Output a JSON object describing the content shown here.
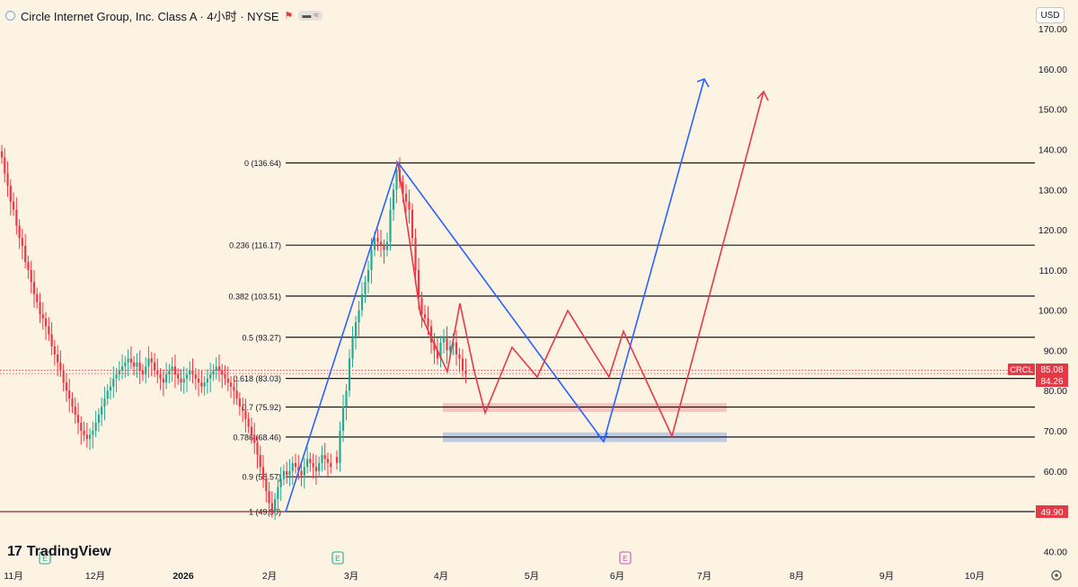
{
  "header": {
    "symbol_title": "Circle Internet Group, Inc. Class A · 4小时 · NYSE",
    "currency": "USD"
  },
  "brand": {
    "name": "TradingView",
    "logo_text": "17"
  },
  "chart_data": {
    "type": "candlestick",
    "symbol": "CRCL",
    "interval": "4小时",
    "exchange": "NYSE",
    "y_axis": {
      "ticks": [
        170,
        160,
        150,
        140,
        130,
        120,
        110,
        100,
        90,
        80,
        70,
        60,
        50,
        40
      ],
      "tick_labels": [
        "170.00",
        "160.00",
        "150.00",
        "140.00",
        "130.00",
        "120.00",
        "110.00",
        "100.00",
        "90.00",
        "80.00",
        "70.00",
        "60.00",
        "50.00",
        "40.00"
      ],
      "ylim": [
        37.5,
        172.5
      ]
    },
    "x_axis": {
      "labels": [
        "11月",
        "12月",
        "2026",
        "2月",
        "3月",
        "4月",
        "5月",
        "6月",
        "7月",
        "8月",
        "9月",
        "10月"
      ]
    },
    "price_labels": [
      {
        "text": "CRCL",
        "value": 85.08,
        "color": "#e53946"
      },
      {
        "text": "85.08",
        "value": 85.08,
        "color": "#e53946"
      },
      {
        "text": "84.26",
        "value": 84.26,
        "color": "#e53946"
      },
      {
        "text": "49.90",
        "value": 49.9,
        "color": "#e53946"
      }
    ],
    "fibonacci": [
      {
        "label": "0 (136.64)",
        "price": 136.64
      },
      {
        "label": "0.236 (116.17)",
        "price": 116.17
      },
      {
        "label": "0.382 (103.51)",
        "price": 103.51
      },
      {
        "label": "0.5 (93.27)",
        "price": 93.27
      },
      {
        "label": "0.618 (83.03)",
        "price": 83.03
      },
      {
        "label": "0.7 (75.92)",
        "price": 75.92
      },
      {
        "label": "0.786 (68.46)",
        "price": 68.46
      },
      {
        "label": "0.9 (58.57)",
        "price": 58.57
      },
      {
        "label": "1 (49.90)",
        "price": 49.9
      }
    ],
    "candles_close": [
      138,
      134,
      131,
      127,
      125,
      121,
      118,
      116,
      112,
      110,
      107,
      104,
      102,
      99,
      98,
      96,
      94,
      91,
      89,
      87,
      85,
      82,
      80,
      78,
      76,
      74,
      72,
      70,
      69,
      68,
      69,
      70,
      72,
      74,
      76,
      78,
      80,
      81,
      83,
      84,
      85,
      86,
      87,
      88,
      87,
      86,
      87,
      85,
      84,
      86,
      88,
      87,
      85,
      84,
      83,
      82,
      84,
      85,
      86,
      84,
      83,
      82,
      83,
      84,
      85,
      84,
      83,
      82,
      81,
      82,
      83,
      84,
      85,
      86,
      85,
      84,
      83,
      82,
      81,
      80,
      78,
      76,
      75,
      73,
      71,
      69,
      67,
      64,
      61,
      58,
      55,
      52,
      50,
      53,
      56,
      58,
      60,
      59,
      60,
      62,
      61,
      60,
      59,
      61,
      63,
      62,
      61,
      60,
      62,
      64,
      63,
      62,
      61
    ],
    "rally_candles_close": [
      62,
      70,
      76,
      80,
      88,
      93,
      97,
      100,
      104,
      107,
      110,
      115,
      118,
      117,
      116,
      115,
      117,
      125,
      130,
      135,
      132,
      129,
      127,
      125,
      118,
      110,
      103,
      99,
      98,
      96,
      92,
      90,
      88,
      92,
      93,
      90,
      91,
      92,
      89,
      88,
      85,
      84
    ],
    "annotations": {
      "blue_path": [
        {
          "date_index": 0,
          "price": 49.9
        },
        {
          "date_index": 1,
          "price": 136.64
        },
        {
          "date_index": 2,
          "price": 67.2
        },
        {
          "date_index": 3,
          "price": 156.8
        }
      ],
      "red_path": [
        {
          "price": 136.64
        },
        {
          "price": 100
        },
        {
          "price": 84.5
        },
        {
          "price": 101.7
        },
        {
          "price": 84.5
        },
        {
          "price": 74.5
        },
        {
          "price": 90.5
        },
        {
          "price": 83.2
        },
        {
          "price": 99.5
        },
        {
          "price": 83.2
        },
        {
          "price": 94.5
        },
        {
          "price": 68.8
        },
        {
          "price": 153.8
        }
      ],
      "zones": [
        {
          "from": 74.7,
          "to": 76.9,
          "color": "#f2b7b5"
        },
        {
          "from": 67.2,
          "to": 69.6,
          "color": "#aebfe0"
        }
      ],
      "markers": [
        "E",
        "E",
        "E"
      ]
    }
  }
}
